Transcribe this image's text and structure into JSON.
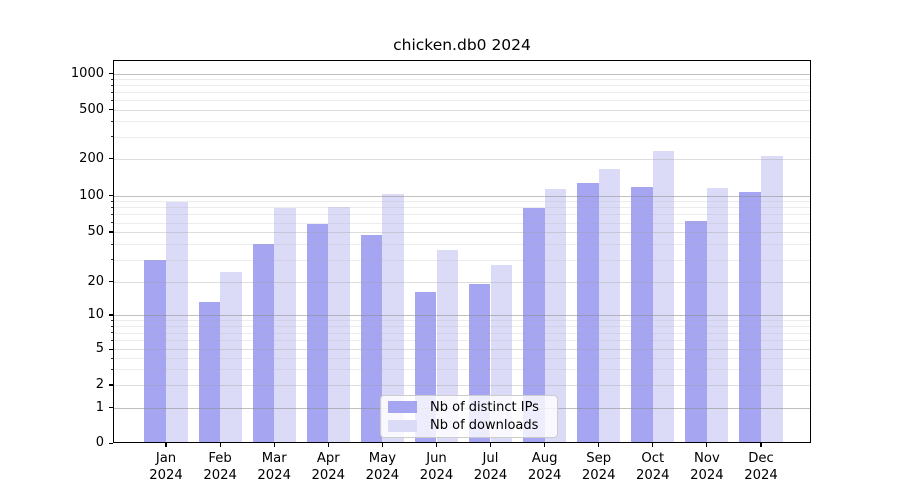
{
  "title": "chicken.db0 2024",
  "legend": {
    "items": [
      {
        "label": "Nb of distinct IPs",
        "color": "#a5a5f2"
      },
      {
        "label": "Nb of downloads",
        "color": "#dbdbf8"
      }
    ]
  },
  "axes": {
    "y_tick_labels": [
      "0",
      "1",
      "2",
      "5",
      "10",
      "20",
      "50",
      "100",
      "200",
      "500",
      "1000"
    ],
    "x_year": "2024"
  },
  "chart_data": {
    "type": "bar",
    "title": "chicken.db0 2024",
    "categories": [
      "Jan",
      "Feb",
      "Mar",
      "Apr",
      "May",
      "Jun",
      "Jul",
      "Aug",
      "Sep",
      "Oct",
      "Nov",
      "Dec"
    ],
    "x_tick_year": "2024",
    "series": [
      {
        "name": "Nb of distinct IPs",
        "color": "#a5a5f2",
        "values": [
          30,
          13,
          40,
          58,
          47,
          16,
          19,
          79,
          126,
          117,
          62,
          107
        ]
      },
      {
        "name": "Nb of downloads",
        "color": "#dbdbf8",
        "values": [
          88,
          24,
          79,
          81,
          103,
          36,
          27,
          113,
          164,
          230,
          115,
          210
        ]
      }
    ],
    "yscale": "symlog (logarithmic above 1, linear segment 0 to 1)",
    "y_ticks": [
      0,
      1,
      2,
      5,
      10,
      20,
      50,
      100,
      200,
      500,
      1000
    ],
    "ylim": [
      0,
      1300
    ],
    "grid": "both (major and minor log gridlines)",
    "legend_position": "lower center"
  }
}
